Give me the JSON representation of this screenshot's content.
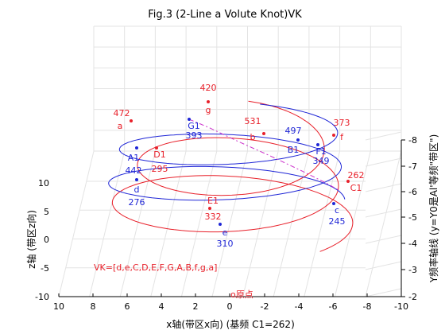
{
  "chart_data": {
    "type": "line",
    "title": "Fig.3 (2-Line a Volute Knot)VK",
    "xlabel": "x轴(带区x向) (基频 C1=262)",
    "ylabel_left": "z轴 (带区z向)",
    "ylabel_right": "Y频率轴线 (y=Y0是Al'等频\"带区\")",
    "x_range": [
      10,
      -10
    ],
    "z_range": [
      -10,
      10
    ],
    "y_range": [
      -2,
      -8
    ],
    "x_ticks": [
      "10",
      "8",
      "6",
      "4",
      "2",
      "0",
      "-2",
      "-4",
      "-6",
      "-8",
      "-10"
    ],
    "z_ticks": [
      "10",
      "5",
      "0",
      "-5",
      "-10"
    ],
    "y_ticks": [
      "-8",
      "-7",
      "-6",
      "-5",
      "-4",
      "-3",
      "-2"
    ],
    "grid": true,
    "colors": {
      "red": "#e8202a",
      "blue": "#1f26d6",
      "magenta": "#cc33cc"
    },
    "formula": "VK=[d,e,C,D,E,F,G,A,B,f,g,a]",
    "origin_label": "o原点",
    "annotations": [
      {
        "name": "g",
        "freq": "420",
        "color": "red"
      },
      {
        "name": "a",
        "freq": "472",
        "color": "red"
      },
      {
        "name": "G1",
        "freq": "393",
        "color": "blue"
      },
      {
        "name": "b",
        "freq": "531",
        "color": "red"
      },
      {
        "name": "B1",
        "freq": "497",
        "color": "blue"
      },
      {
        "name": "f",
        "freq": "373",
        "color": "red"
      },
      {
        "name": "F1",
        "freq": "349",
        "color": "blue"
      },
      {
        "name": "A1",
        "freq": "442",
        "color": "blue"
      },
      {
        "name": "D1",
        "freq": "295",
        "color": "red"
      },
      {
        "name": "d",
        "freq": "276",
        "color": "blue"
      },
      {
        "name": "C1",
        "freq": "262",
        "color": "red"
      },
      {
        "name": "c",
        "freq": "245",
        "color": "blue"
      },
      {
        "name": "E1",
        "freq": "332",
        "color": "red"
      },
      {
        "name": "e",
        "freq": "310",
        "color": "blue"
      }
    ]
  }
}
